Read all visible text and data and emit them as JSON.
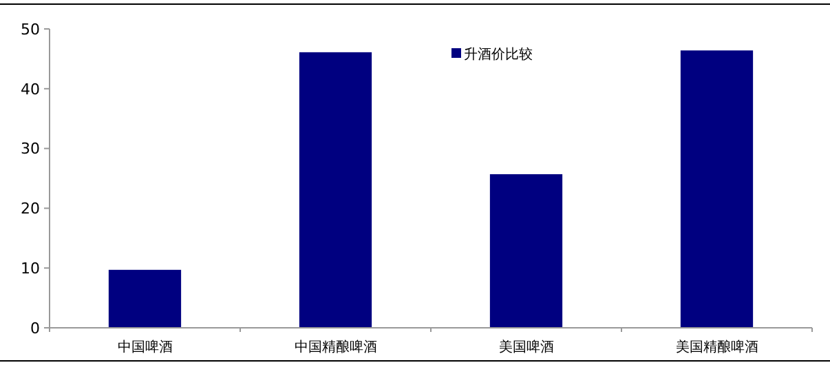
{
  "chart_data": {
    "type": "bar",
    "categories": [
      "中国啤酒",
      "中国精酿啤酒",
      "美国啤酒",
      "美国精酿啤酒"
    ],
    "series": [
      {
        "name": "升酒价比较",
        "color": "#000080",
        "values": [
          9.7,
          46.1,
          25.7,
          46.4
        ]
      }
    ],
    "ylim": [
      0,
      50
    ],
    "yticks": [
      0,
      10,
      20,
      30,
      40,
      50
    ],
    "grid": false,
    "legend": "top"
  }
}
